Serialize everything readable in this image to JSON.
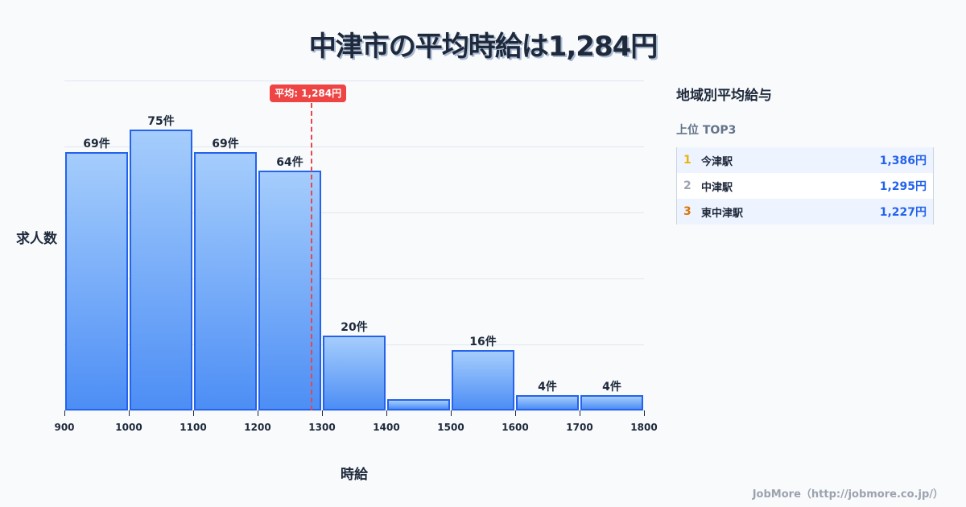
{
  "title": "中津市の平均時給は1,284円",
  "chart_data": {
    "type": "bar",
    "title": "中津市の平均時給は1,284円",
    "xlabel": "時給",
    "ylabel": "求人数",
    "categories": [
      "900-1000",
      "1000-1100",
      "1100-1200",
      "1200-1300",
      "1300-1400",
      "1400-1500",
      "1500-1600",
      "1600-1700",
      "1700-1800"
    ],
    "bin_edges": [
      900,
      1000,
      1100,
      1200,
      1300,
      1400,
      1500,
      1600,
      1700,
      1800
    ],
    "values": [
      69,
      75,
      69,
      64,
      20,
      3,
      16,
      4,
      4
    ],
    "value_labels": [
      "69件",
      "75件",
      "69件",
      "64件",
      "20件",
      "",
      "16件",
      "4件",
      "4件"
    ],
    "x_ticks": [
      "900",
      "1000",
      "1100",
      "1200",
      "1300",
      "1400",
      "1500",
      "1600",
      "1700",
      "1800"
    ],
    "ylim": [
      0,
      88
    ],
    "grid": true,
    "annotations": [
      {
        "type": "vline",
        "x": 1284,
        "label": "平均: 1,284円",
        "color": "#ef4444"
      }
    ],
    "bar_color": "#4d8ef5",
    "bar_edge_color": "#2563eb"
  },
  "average": {
    "label": "平均: 1,284円",
    "value": 1284
  },
  "axes": {
    "xlabel": "時給",
    "ylabel": "求人数"
  },
  "side": {
    "title": "地域別平均給与",
    "subtitle": "上位 TOP3",
    "ranks": [
      {
        "num": "1",
        "name": "今津駅",
        "value": "1,386円",
        "color": "#eab308"
      },
      {
        "num": "2",
        "name": "中津駅",
        "value": "1,295円",
        "color": "#9ca3af"
      },
      {
        "num": "3",
        "name": "東中津駅",
        "value": "1,227円",
        "color": "#d97706"
      }
    ]
  },
  "footer": "JobMore（http://jobmore.co.jp/）"
}
